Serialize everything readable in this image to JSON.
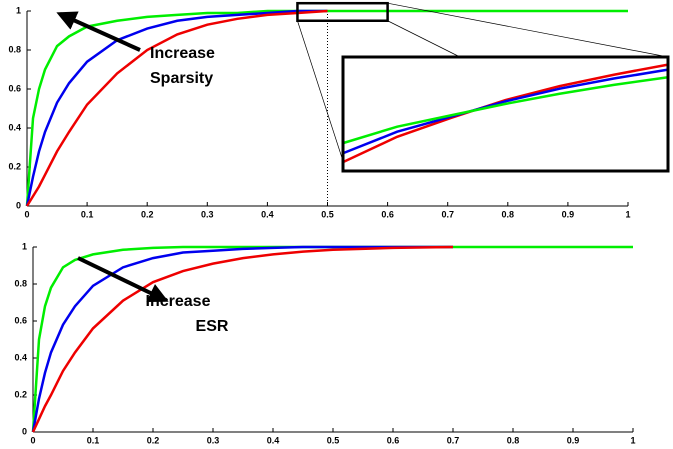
{
  "chart_data": [
    {
      "type": "line",
      "x": [
        0,
        0.01,
        0.02,
        0.03,
        0.05,
        0.07,
        0.1,
        0.15,
        0.2,
        0.25,
        0.3,
        0.35,
        0.4,
        0.45,
        0.5,
        0.6,
        0.7,
        0.8,
        0.9,
        1
      ],
      "series": [
        {
          "color": "#00ee00",
          "values": [
            0,
            0.45,
            0.6,
            0.7,
            0.82,
            0.87,
            0.92,
            0.95,
            0.97,
            0.98,
            0.99,
            0.99,
            1,
            1,
            1,
            1,
            1,
            1,
            1,
            1
          ]
        },
        {
          "color": "#0000ee",
          "values": [
            0,
            0.15,
            0.28,
            0.38,
            0.53,
            0.63,
            0.74,
            0.85,
            0.91,
            0.95,
            0.97,
            0.98,
            0.99,
            1,
            1,
            null,
            null,
            null,
            null,
            null
          ]
        },
        {
          "color": "#ee0000",
          "values": [
            0,
            0.05,
            0.1,
            0.16,
            0.28,
            0.38,
            0.52,
            0.68,
            0.8,
            0.88,
            0.93,
            0.96,
            0.98,
            0.99,
            1,
            null,
            null,
            null,
            null,
            null
          ]
        }
      ],
      "xlim": [
        0,
        1
      ],
      "xticks": [
        0,
        0.1,
        0.2,
        0.3,
        0.4,
        0.5,
        0.6,
        0.7,
        0.8,
        0.9,
        1
      ],
      "ylim": [
        0,
        1
      ],
      "yticks": [
        0,
        0.2,
        0.4,
        0.6,
        0.8,
        1
      ],
      "reference_x": 0.5,
      "annotation": [
        "Increase",
        "Sparsity"
      ],
      "inset": {
        "type": "line",
        "x": [
          0.45,
          0.475,
          0.5,
          0.525,
          0.55,
          0.575,
          0.6
        ],
        "xlim": [
          0.45,
          0.6
        ],
        "ylim": [
          0.95,
          1.04
        ],
        "series": [
          {
            "color": "#ee0000",
            "values": [
              0.957,
              0.977,
              0.992,
              1.006,
              1.017,
              1.026,
              1.034
            ]
          },
          {
            "color": "#0000ee",
            "values": [
              0.964,
              0.981,
              0.993,
              1.005,
              1.015,
              1.023,
              1.03
            ]
          },
          {
            "color": "#00ee00",
            "values": [
              0.972,
              0.985,
              0.994,
              1.003,
              1.011,
              1.018,
              1.024
            ]
          }
        ]
      }
    },
    {
      "type": "line",
      "x": [
        0,
        0.01,
        0.02,
        0.03,
        0.05,
        0.07,
        0.1,
        0.15,
        0.2,
        0.25,
        0.3,
        0.35,
        0.4,
        0.45,
        0.5,
        0.6,
        0.7,
        0.8,
        0.9,
        1
      ],
      "series": [
        {
          "color": "#00ee00",
          "values": [
            0,
            0.5,
            0.68,
            0.78,
            0.89,
            0.93,
            0.96,
            0.985,
            0.995,
            1,
            1,
            1,
            1,
            1,
            1,
            1,
            1,
            1,
            1,
            1
          ]
        },
        {
          "color": "#0000ee",
          "values": [
            0,
            0.18,
            0.32,
            0.43,
            0.58,
            0.68,
            0.79,
            0.89,
            0.94,
            0.97,
            0.98,
            0.99,
            0.995,
            1,
            1,
            1,
            1,
            null,
            null,
            null
          ]
        },
        {
          "color": "#ee0000",
          "values": [
            0,
            0.07,
            0.14,
            0.2,
            0.33,
            0.43,
            0.56,
            0.71,
            0.81,
            0.87,
            0.91,
            0.94,
            0.96,
            0.975,
            0.985,
            0.995,
            1,
            null,
            null,
            null
          ]
        }
      ],
      "xlim": [
        0,
        1
      ],
      "xticks": [
        0,
        0.1,
        0.2,
        0.3,
        0.4,
        0.5,
        0.6,
        0.7,
        0.8,
        0.9,
        1
      ],
      "ylim": [
        0,
        1
      ],
      "yticks": [
        0,
        0.2,
        0.4,
        0.6,
        0.8,
        1
      ],
      "annotation": [
        "Increase",
        "ESR"
      ]
    }
  ]
}
